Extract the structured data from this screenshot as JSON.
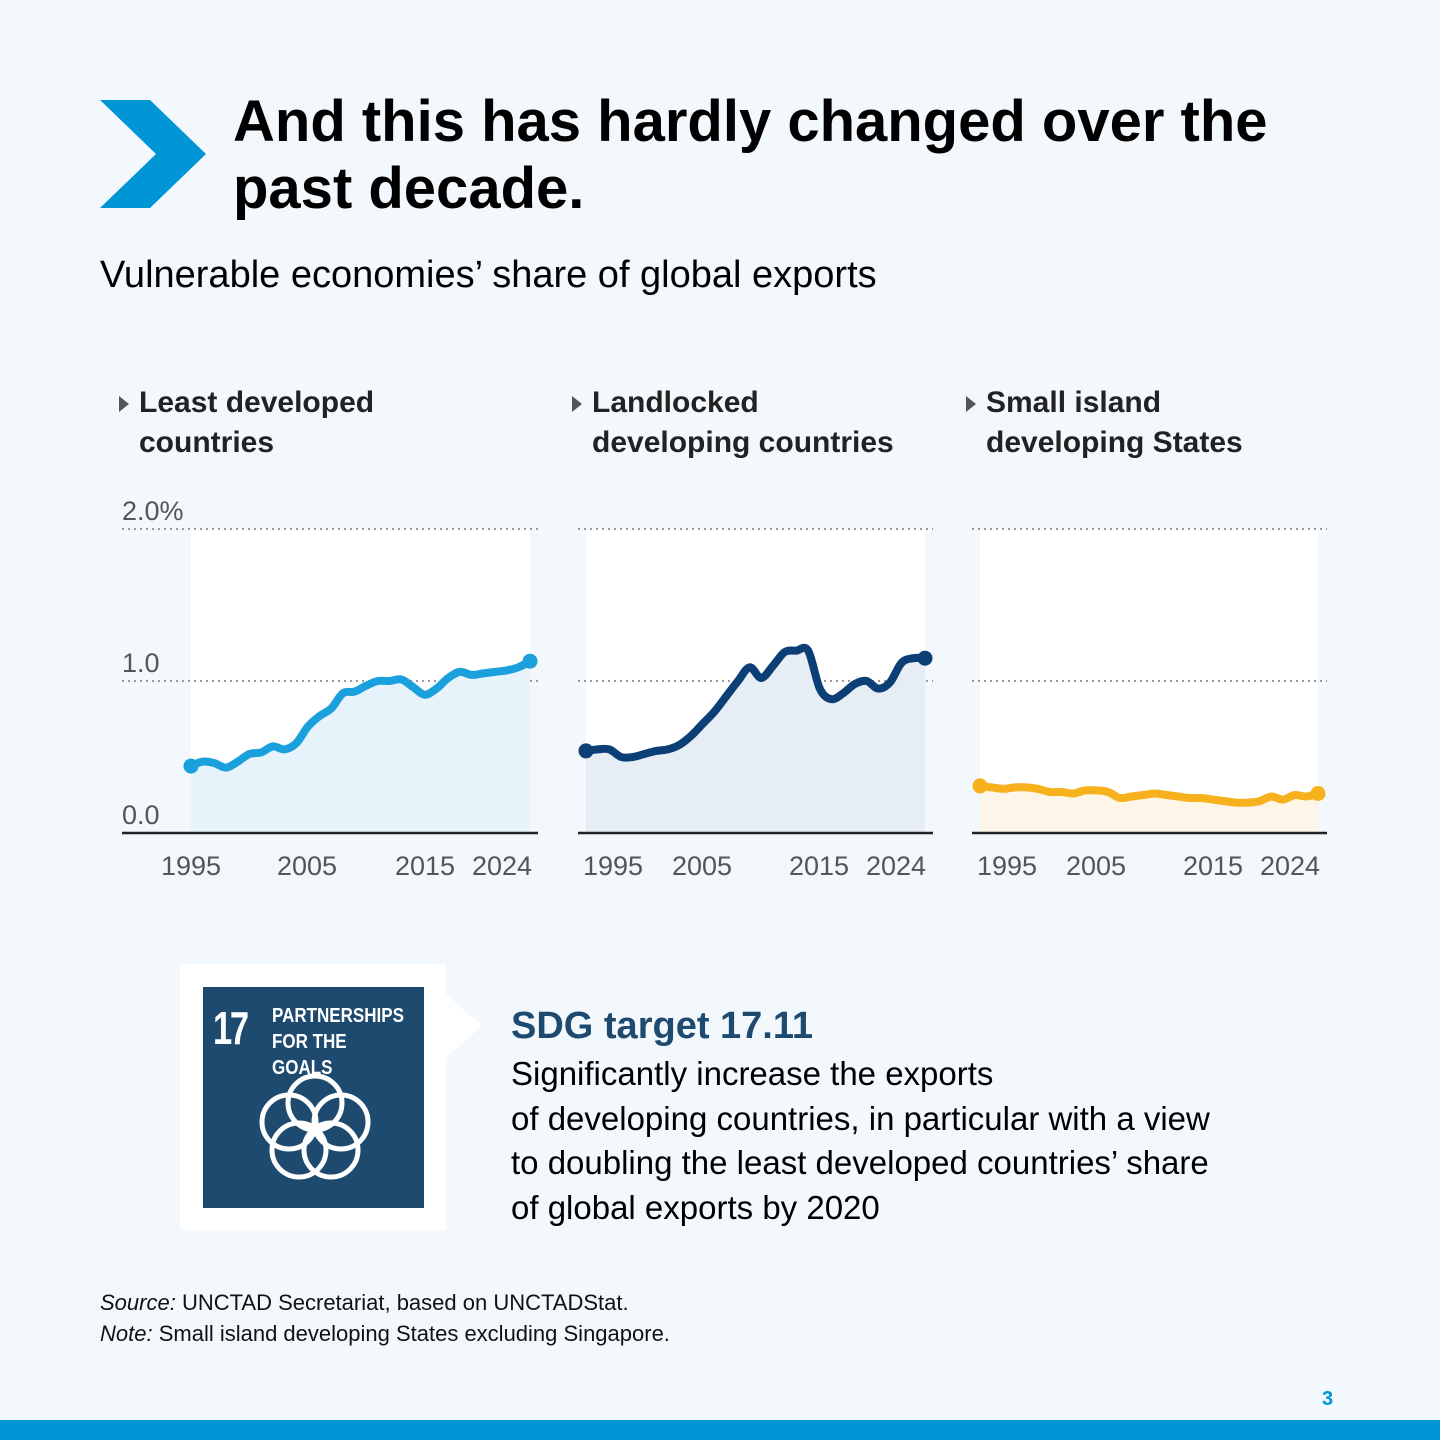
{
  "headline": "And this has hardly changed over the past decade.",
  "subtitle": "Vulnerable economies’ share of global exports",
  "colors": {
    "accent": "#0096d6",
    "ldc": "#1aa0dc",
    "lldc": "#0d3f77",
    "sids": "#f7b11d",
    "sdg17": "#1d4a6e"
  },
  "chart_data": [
    {
      "type": "area",
      "title": "Least developed countries",
      "color": "#1aa0dc",
      "ylim": [
        0,
        2
      ],
      "y_ticks": [
        "2.0%",
        "1.0",
        "0.0"
      ],
      "x_tick_labels": [
        "1995",
        "2005",
        "2015",
        "2024"
      ],
      "grid": true,
      "x": [
        1995,
        1996,
        1997,
        1998,
        1999,
        2000,
        2001,
        2002,
        2003,
        2004,
        2005,
        2006,
        2007,
        2008,
        2009,
        2010,
        2011,
        2012,
        2013,
        2014,
        2015,
        2016,
        2017,
        2018,
        2019,
        2020,
        2021,
        2022,
        2023,
        2024
      ],
      "values": [
        0.44,
        0.47,
        0.46,
        0.43,
        0.47,
        0.52,
        0.53,
        0.57,
        0.55,
        0.59,
        0.7,
        0.77,
        0.82,
        0.92,
        0.93,
        0.97,
        1.0,
        1.0,
        1.01,
        0.96,
        0.91,
        0.95,
        1.02,
        1.06,
        1.04,
        1.05,
        1.06,
        1.07,
        1.09,
        1.13
      ]
    },
    {
      "type": "area",
      "title": "Landlocked developing countries",
      "color": "#0d3f77",
      "ylim": [
        0,
        2
      ],
      "y_ticks": [],
      "x_tick_labels": [
        "1995",
        "2005",
        "2015",
        "2024"
      ],
      "grid": true,
      "x": [
        1995,
        1996,
        1997,
        1998,
        1999,
        2000,
        2001,
        2002,
        2003,
        2004,
        2005,
        2006,
        2007,
        2008,
        2009,
        2010,
        2011,
        2012,
        2013,
        2014,
        2015,
        2016,
        2017,
        2018,
        2019,
        2020,
        2021,
        2022,
        2023,
        2024
      ],
      "values": [
        0.54,
        0.55,
        0.55,
        0.5,
        0.5,
        0.52,
        0.54,
        0.55,
        0.58,
        0.64,
        0.72,
        0.8,
        0.9,
        1.0,
        1.09,
        1.02,
        1.1,
        1.19,
        1.2,
        1.2,
        0.95,
        0.88,
        0.92,
        0.98,
        1.0,
        0.95,
        0.99,
        1.12,
        1.15,
        1.15
      ]
    },
    {
      "type": "area",
      "title": "Small island developing States",
      "color": "#f7b11d",
      "ylim": [
        0,
        2
      ],
      "y_ticks": [],
      "x_tick_labels": [
        "1995",
        "2005",
        "2015",
        "2024"
      ],
      "grid": true,
      "x": [
        1995,
        1996,
        1997,
        1998,
        1999,
        2000,
        2001,
        2002,
        2003,
        2004,
        2005,
        2006,
        2007,
        2008,
        2009,
        2010,
        2011,
        2012,
        2013,
        2014,
        2015,
        2016,
        2017,
        2018,
        2019,
        2020,
        2021,
        2022,
        2023,
        2024
      ],
      "values": [
        0.31,
        0.3,
        0.29,
        0.3,
        0.3,
        0.29,
        0.27,
        0.27,
        0.26,
        0.28,
        0.28,
        0.27,
        0.23,
        0.24,
        0.25,
        0.26,
        0.25,
        0.24,
        0.23,
        0.23,
        0.22,
        0.21,
        0.2,
        0.2,
        0.21,
        0.24,
        0.22,
        0.25,
        0.24,
        0.26
      ]
    }
  ],
  "sdg": {
    "number": "17",
    "label_line1": "PARTNERSHIPS",
    "label_line2": "FOR THE GOALS",
    "icon": "five-interlocking-rings-icon",
    "target_title": "SDG target 17.11",
    "target_line1": "Significantly increase the exports",
    "target_line2": "of developing countries, in particular with a view",
    "target_line3": "to doubling the least developed countries’ share",
    "target_line4": "of global exports by 2020"
  },
  "source_label": "Source:",
  "source_text": " UNCTAD Secretariat, based on UNCTADStat.",
  "note_label": "Note:",
  "note_text": " Small island developing States excluding Singapore.",
  "page_number": "3"
}
